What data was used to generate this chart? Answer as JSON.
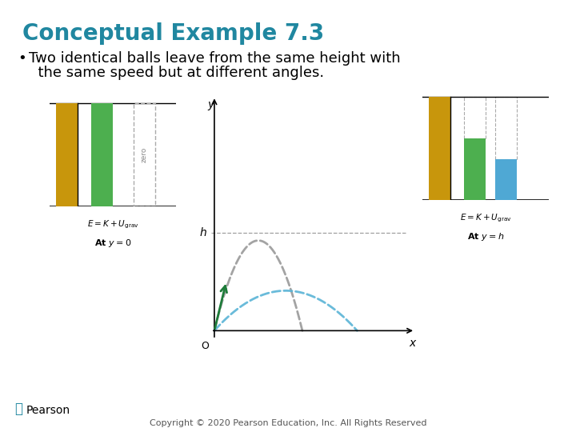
{
  "title": "Conceptual Example 7.3",
  "title_color": "#2087a0",
  "title_fontsize": 20,
  "bullet_text1": "Two identical balls leave from the same height with",
  "bullet_text2": "  the same speed but at different angles.",
  "bullet_fontsize": 13,
  "bg_color": "#ffffff",
  "footer_text": "Copyright © 2020 Pearson Education, Inc. All Rights Reserved",
  "footer_fontsize": 8,
  "teal_color": "#2087a0",
  "dark_green_color": "#1e7c3a",
  "gray_dashed_color": "#999999",
  "blue_dashed_color": "#5ab4d6",
  "bar_gold_color": "#c8960c",
  "bar_green_color": "#4daf4f",
  "bar_blue_color": "#4fa8d4",
  "axis_color": "#333333",
  "dot_color": "#111111",
  "h_line_color": "#888888",
  "pearson_color": "#2087a0"
}
